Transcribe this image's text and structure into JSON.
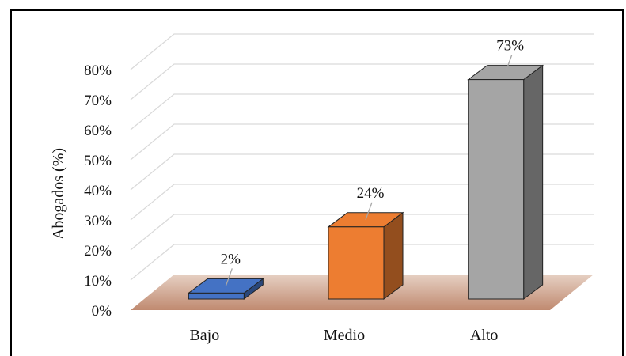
{
  "chart_data": {
    "type": "bar",
    "title": "",
    "xlabel": "",
    "ylabel": "Abogados (%)",
    "ylim": [
      0,
      80
    ],
    "yticks": [
      "0%",
      "10%",
      "20%",
      "30%",
      "40%",
      "50%",
      "60%",
      "70%",
      "80%"
    ],
    "categories": [
      "Bajo",
      "Medio",
      "Alto"
    ],
    "values": [
      2,
      24,
      73
    ],
    "data_labels": [
      "2%",
      "24%",
      "73%"
    ],
    "colors": [
      "#4472c4",
      "#ed7d31",
      "#a5a5a5"
    ],
    "floor_color": "#c9937a",
    "grid": true,
    "legend": "none"
  }
}
